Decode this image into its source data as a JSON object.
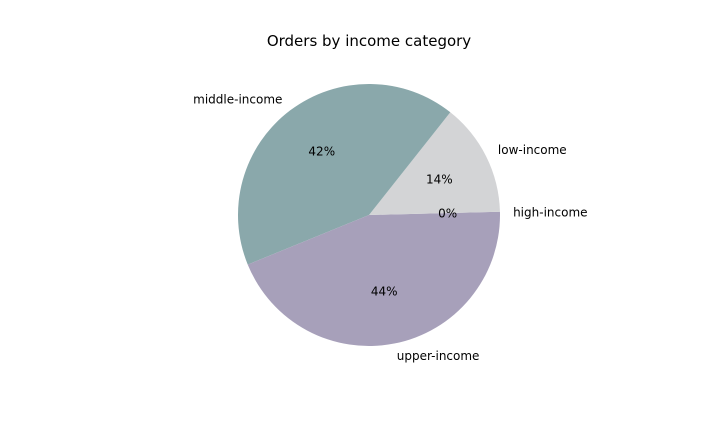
{
  "chart_data": {
    "type": "pie",
    "title": "Orders by income category",
    "categories": [
      "high-income",
      "low-income",
      "middle-income",
      "upper-income"
    ],
    "values": [
      0.4,
      14,
      42,
      44
    ],
    "pct_labels": [
      "0%",
      "14%",
      "42%",
      "44%"
    ],
    "colors": [
      "#a7a0ba",
      "#d3d4d6",
      "#8aa8ab",
      "#a7a0ba"
    ],
    "start_angle_deg": 0,
    "direction": "counterclockwise"
  }
}
